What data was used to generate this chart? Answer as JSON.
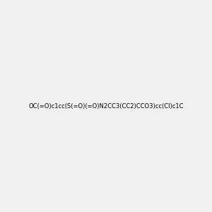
{
  "smiles": "OC(=O)c1cc(S(=O)(=O)N2CC3(CC2)CCO3)cc(Cl)c1C",
  "title": "",
  "bg_color": "#f0f0f0",
  "img_size": [
    300,
    300
  ],
  "atom_colors": {
    "O": "#ff0000",
    "N": "#0000ff",
    "S": "#cccc00",
    "Cl": "#00cc00",
    "C": "#000000",
    "H": "#7f9f9f"
  }
}
